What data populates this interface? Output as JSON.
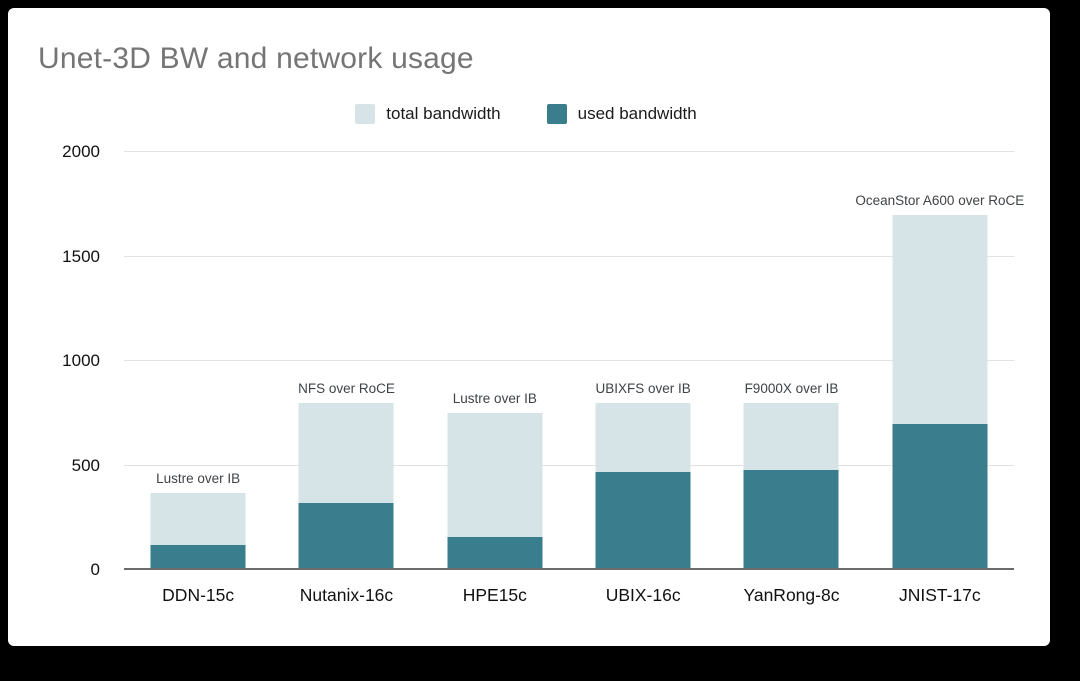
{
  "chart_data": {
    "type": "bar",
    "mode": "overlay",
    "title": "Unet-3D BW and network usage",
    "categories": [
      "DDN-15c",
      "Nutanix-16c",
      "HPE15c",
      "UBIX-16c",
      "YanRong-8c",
      "JNIST-17c"
    ],
    "series": [
      {
        "name": "total bandwidth",
        "color": "#d7e4e7",
        "values": [
          370,
          800,
          750,
          800,
          800,
          1700
        ]
      },
      {
        "name": "used bandwidth",
        "color": "#3a7d8d",
        "values": [
          120,
          320,
          160,
          470,
          480,
          700
        ]
      }
    ],
    "bar_annotations": [
      "Lustre over IB",
      "NFS over RoCE",
      "Lustre over IB",
      "UBIXFS over IB",
      "F9000X over IB",
      "OceanStor A600 over RoCE"
    ],
    "xlabel": "",
    "ylabel": "",
    "ylim": [
      0,
      2000
    ],
    "yticks": [
      0,
      500,
      1000,
      1500,
      2000
    ],
    "grid": true,
    "legend_position": "top"
  }
}
